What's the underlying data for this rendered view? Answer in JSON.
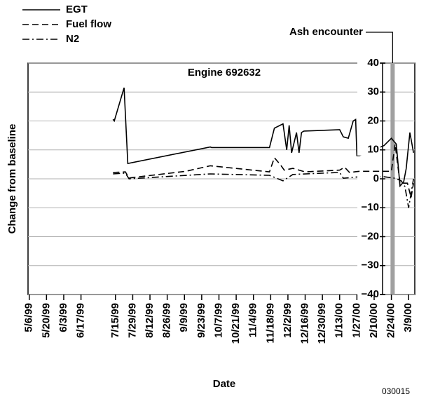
{
  "chart_data": {
    "type": "line",
    "title": "Engine 692632",
    "xlabel": "Date",
    "ylabel": "Change from baseline",
    "footnote": "030015",
    "xlim": [
      "5/5/99",
      "3/14/00"
    ],
    "xticks": [
      "5/6/99",
      "5/20/99",
      "6/3/99",
      "6/17/99",
      "7/15/99",
      "7/29/99",
      "8/12/99",
      "8/26/99",
      "9/9/99",
      "9/23/99",
      "10/7/99",
      "10/21/99",
      "11/4/99",
      "11/18/99",
      "12/2/99",
      "12/16/99",
      "12/30/99",
      "1/13/00",
      "1/27/00",
      "2/10/00",
      "2/24/00",
      "3/9/00"
    ],
    "ylim": [
      -40,
      40
    ],
    "yticks": [
      {
        "value": -40,
        "label": "−40"
      },
      {
        "value": -30,
        "label": "−30"
      },
      {
        "value": -20,
        "label": "−20"
      },
      {
        "value": -10,
        "label": "−10"
      },
      0,
      10,
      20,
      30,
      40
    ],
    "grid": true,
    "legend": "top-left",
    "annotation": {
      "label": "Ash encounter",
      "x": "2/25/00",
      "color": "#a0a0a0"
    },
    "series": [
      {
        "name": "EGT",
        "color": "#000000",
        "dash": "solid",
        "x": [
          "7/13/99",
          "7/14/99",
          "7/22/99",
          "7/25/99",
          "9/30/99",
          "10/1/99",
          "11/17/99",
          "11/21/99",
          "11/28/99",
          "12/1/99",
          "12/3/99",
          "12/5/99",
          "12/9/99",
          "12/11/99",
          "12/13/99",
          "12/15/99",
          "1/13/00",
          "1/16/00",
          "1/20/00",
          "1/24/00",
          "1/26/00",
          "1/27/00",
          "1/29/00",
          "2/18/00",
          "2/24/00",
          "2/28/00",
          "3/2/00",
          "3/5/00",
          "3/7/00",
          "3/10/00",
          "3/13/00"
        ],
        "values": [
          20.6,
          20,
          31.5,
          5.3,
          11,
          10.8,
          10.8,
          17.5,
          19,
          10,
          18.5,
          9,
          16,
          9,
          16,
          16.5,
          17,
          14.5,
          14,
          20,
          20.5,
          8,
          8,
          11.5,
          14,
          12,
          -2.5,
          -1,
          3.5,
          16,
          9
        ]
      },
      {
        "name": "Fuel flow",
        "color": "#000000",
        "dash": "dashed",
        "x": [
          "7/13/99",
          "7/23/99",
          "7/26/99",
          "9/10/99",
          "9/30/99",
          "11/17/99",
          "11/21/99",
          "11/26/99",
          "11/29/99",
          "12/6/99",
          "12/16/99",
          "1/13/00",
          "1/17/00",
          "1/21/00",
          "1/29/00",
          "2/18/00",
          "2/24/00",
          "2/27/00",
          "3/2/00",
          "3/8/00",
          "3/11/00",
          "3/13/00"
        ],
        "values": [
          2.2,
          2.4,
          0.3,
          2.6,
          4.5,
          2.4,
          7.3,
          4.8,
          3,
          3.6,
          2.4,
          3,
          4,
          2.2,
          2.6,
          2.6,
          2.6,
          12,
          -1.5,
          -1.5,
          -6.5,
          -1.5
        ]
      },
      {
        "name": "N2",
        "color": "#000000",
        "dash": "dashdot",
        "x": [
          "7/13/99",
          "7/23/99",
          "7/26/99",
          "9/30/99",
          "11/17/99",
          "11/21/99",
          "11/28/99",
          "12/6/99",
          "1/13/00",
          "1/16/00",
          "1/29/00",
          "2/18/00",
          "2/27/00",
          "3/3/00",
          "3/6/00",
          "3/9/00",
          "3/13/00"
        ],
        "values": [
          1.7,
          2,
          0,
          1.7,
          1.2,
          0.5,
          -0.7,
          1.5,
          2.2,
          0.2,
          0.7,
          0.7,
          0.2,
          -0.7,
          -2.7,
          -10,
          0
        ]
      }
    ]
  }
}
